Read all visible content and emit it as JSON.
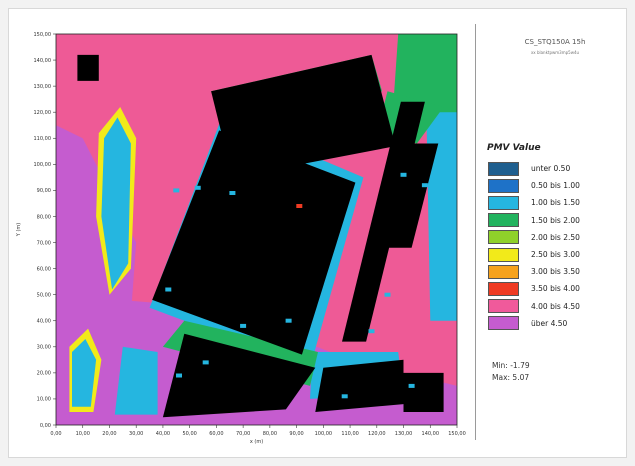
{
  "chart_data": {
    "type": "heatmap",
    "title": "CS_STQ150A 15h",
    "subtitle": "xx blanktpwm3mp5w4u",
    "xlabel": "x (m)",
    "ylabel": "Y (m)",
    "xlim": [
      0,
      150
    ],
    "ylim": [
      0,
      150
    ],
    "x_ticks": [
      "0,00",
      "10,00",
      "20,00",
      "30,00",
      "40,00",
      "50,00",
      "60,00",
      "70,00",
      "80,00",
      "90,00",
      "100,00",
      "110,00",
      "120,00",
      "130,00",
      "140,00",
      "150,00"
    ],
    "y_ticks": [
      "0,00",
      "10,00",
      "20,00",
      "30,00",
      "40,00",
      "50,00",
      "60,00",
      "70,00",
      "80,00",
      "90,00",
      "100,00",
      "110,00",
      "120,00",
      "130,00",
      "140,00",
      "150,00"
    ],
    "legend_title": "PMV Value",
    "legend": [
      {
        "label": "unter 0.50",
        "color": "#1f5f8f"
      },
      {
        "label": "0.50 bis 1.00",
        "color": "#1e72c8"
      },
      {
        "label": "1.00 bis 1.50",
        "color": "#25b6e0"
      },
      {
        "label": "1.50 bis 2.00",
        "color": "#22b35e"
      },
      {
        "label": "2.00 bis 2.50",
        "color": "#8fd12a"
      },
      {
        "label": "2.50 bis 3.00",
        "color": "#f2ea1a"
      },
      {
        "label": "3.00 bis 3.50",
        "color": "#f6a21c"
      },
      {
        "label": "3.50 bis 4.00",
        "color": "#ef3b23"
      },
      {
        "label": "4.00 bis 4.50",
        "color": "#f05a9b"
      },
      {
        "label": "über 4.50",
        "color": "#c55ccf"
      }
    ],
    "min_label": "Min: -1.79",
    "max_label": "Max: 5.07",
    "base_color": "#ee5a96",
    "building_color": "#000000",
    "buildings": [
      {
        "pts": [
          [
            8,
            132
          ],
          [
            16,
            132
          ],
          [
            16,
            142
          ],
          [
            8,
            142
          ]
        ]
      },
      {
        "pts": [
          [
            58,
            128
          ],
          [
            118,
            142
          ],
          [
            127,
            107
          ],
          [
            66,
            95
          ]
        ]
      },
      {
        "pts": [
          [
            36,
            48
          ],
          [
            92,
            27
          ],
          [
            112,
            93
          ],
          [
            61,
            113
          ]
        ]
      },
      {
        "pts": [
          [
            107,
            32
          ],
          [
            129,
            124
          ],
          [
            138,
            124
          ],
          [
            116,
            32
          ]
        ]
      },
      {
        "pts": [
          [
            120,
            68
          ],
          [
            132,
            108
          ],
          [
            143,
            108
          ],
          [
            133,
            68
          ]
        ]
      },
      {
        "pts": [
          [
            40,
            3
          ],
          [
            86,
            6
          ],
          [
            97,
            22
          ],
          [
            48,
            35
          ]
        ]
      },
      {
        "pts": [
          [
            97,
            5
          ],
          [
            130,
            8
          ],
          [
            130,
            25
          ],
          [
            100,
            22
          ]
        ]
      },
      {
        "pts": [
          [
            130,
            5
          ],
          [
            145,
            5
          ],
          [
            145,
            20
          ],
          [
            130,
            20
          ]
        ]
      }
    ],
    "zones": [
      {
        "color": "#c55ccf",
        "pts": [
          [
            0,
            0
          ],
          [
            150,
            0
          ],
          [
            150,
            15
          ],
          [
            110,
            25
          ],
          [
            60,
            45
          ],
          [
            0,
            50
          ]
        ]
      },
      {
        "color": "#c55ccf",
        "pts": [
          [
            0,
            0
          ],
          [
            25,
            0
          ],
          [
            30,
            70
          ],
          [
            10,
            110
          ],
          [
            0,
            115
          ]
        ]
      },
      {
        "color": "#25b6e0",
        "pts": [
          [
            35,
            45
          ],
          [
            95,
            22
          ],
          [
            115,
            95
          ],
          [
            62,
            118
          ]
        ]
      },
      {
        "color": "#22b35e",
        "pts": [
          [
            45,
            65
          ],
          [
            80,
            58
          ],
          [
            92,
            90
          ],
          [
            60,
            100
          ]
        ]
      },
      {
        "color": "#25b6e0",
        "pts": [
          [
            140,
            40
          ],
          [
            150,
            40
          ],
          [
            150,
            150
          ],
          [
            138,
            150
          ]
        ]
      },
      {
        "color": "#22b35e",
        "pts": [
          [
            126,
            120
          ],
          [
            150,
            120
          ],
          [
            150,
            150
          ],
          [
            128,
            150
          ]
        ]
      },
      {
        "color": "#25b6e0",
        "pts": [
          [
            95,
            10
          ],
          [
            130,
            12
          ],
          [
            128,
            28
          ],
          [
            96,
            28
          ]
        ]
      },
      {
        "color": "#22b35e",
        "pts": [
          [
            40,
            30
          ],
          [
            95,
            15
          ],
          [
            98,
            28
          ],
          [
            48,
            40
          ]
        ]
      },
      {
        "color": "#25b6e0",
        "pts": [
          [
            22,
            4
          ],
          [
            38,
            4
          ],
          [
            38,
            28
          ],
          [
            25,
            30
          ]
        ]
      },
      {
        "color": "#22b35e",
        "pts": [
          [
            120,
            112
          ],
          [
            135,
            108
          ],
          [
            145,
            122
          ],
          [
            124,
            128
          ]
        ]
      },
      {
        "color": "#22b35e",
        "pts": [
          [
            58,
            128
          ],
          [
            118,
            142
          ],
          [
            122,
            128
          ],
          [
            64,
            118
          ]
        ]
      }
    ],
    "strips": [
      {
        "color": "#f2ea1a",
        "pts": [
          [
            20,
            50
          ],
          [
            28,
            60
          ],
          [
            30,
            110
          ],
          [
            24,
            122
          ],
          [
            16,
            112
          ],
          [
            15,
            80
          ]
        ]
      },
      {
        "color": "#25b6e0",
        "pts": [
          [
            21,
            52
          ],
          [
            27,
            62
          ],
          [
            28,
            108
          ],
          [
            23,
            118
          ],
          [
            18,
            110
          ],
          [
            17,
            80
          ]
        ]
      },
      {
        "color": "#f2ea1a",
        "pts": [
          [
            5,
            5
          ],
          [
            14,
            5
          ],
          [
            17,
            25
          ],
          [
            12,
            37
          ],
          [
            5,
            30
          ]
        ]
      },
      {
        "color": "#25b6e0",
        "pts": [
          [
            6,
            7
          ],
          [
            13,
            7
          ],
          [
            15,
            25
          ],
          [
            11,
            33
          ],
          [
            6,
            28
          ]
        ]
      }
    ],
    "spots": [
      {
        "color": "#25b6e0",
        "x": 45,
        "y": 90
      },
      {
        "color": "#25b6e0",
        "x": 53,
        "y": 91
      },
      {
        "color": "#25b6e0",
        "x": 66,
        "y": 89
      },
      {
        "color": "#ef3b23",
        "x": 91,
        "y": 84
      },
      {
        "color": "#25b6e0",
        "x": 42,
        "y": 52
      },
      {
        "color": "#25b6e0",
        "x": 70,
        "y": 38
      },
      {
        "color": "#25b6e0",
        "x": 87,
        "y": 40
      },
      {
        "color": "#25b6e0",
        "x": 130,
        "y": 96
      },
      {
        "color": "#25b6e0",
        "x": 138,
        "y": 92
      },
      {
        "color": "#25b6e0",
        "x": 118,
        "y": 36
      },
      {
        "color": "#25b6e0",
        "x": 124,
        "y": 50
      },
      {
        "color": "#25b6e0",
        "x": 46,
        "y": 19
      },
      {
        "color": "#25b6e0",
        "x": 56,
        "y": 24
      },
      {
        "color": "#25b6e0",
        "x": 108,
        "y": 11
      },
      {
        "color": "#25b6e0",
        "x": 133,
        "y": 15
      }
    ]
  }
}
